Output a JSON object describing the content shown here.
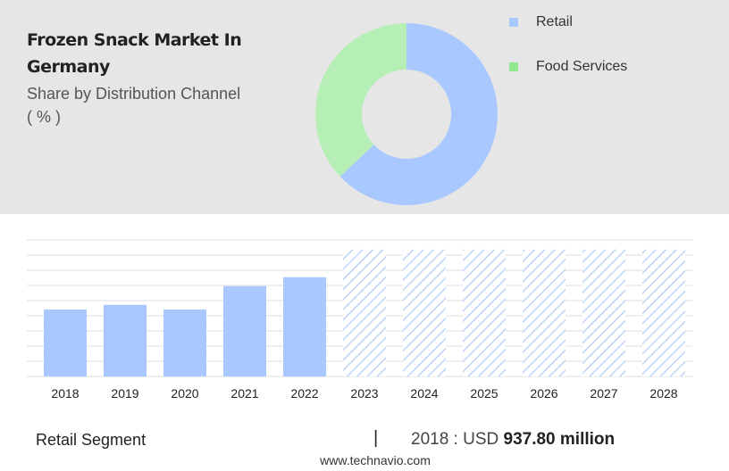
{
  "header": {
    "title": "Frozen Snack Market In Germany",
    "subtitle": "Share by Distribution Channel",
    "unit": "( % )"
  },
  "chart_data": [
    {
      "type": "pie",
      "variant": "donut",
      "labels": [
        "Retail",
        "Food Services"
      ],
      "values": [
        63,
        37
      ],
      "colors": [
        "#a8c8ff",
        "#b5efb5"
      ],
      "legend_colors": [
        "#a8c8ff",
        "#90e890"
      ],
      "legend": "right"
    },
    {
      "type": "bar",
      "categories": [
        "2018",
        "2019",
        "2020",
        "2021",
        "2022",
        "2023",
        "2024",
        "2025",
        "2026",
        "2027",
        "2028"
      ],
      "values": [
        937.8,
        1004,
        937.8,
        1265,
        1390,
        null,
        null,
        null,
        null,
        null,
        null
      ],
      "forecast_categories": [
        "2023",
        "2024",
        "2025",
        "2026",
        "2027",
        "2028"
      ],
      "ylim": [
        0,
        1900
      ],
      "grid": true,
      "colors": {
        "bar": "#a8c8ff",
        "forecast": "#bcd4f5"
      }
    }
  ],
  "footer": {
    "segment": "Retail Segment",
    "divider": "|",
    "year_label": "2018 : USD",
    "value": "937.80 million",
    "source": "www.technavio.com"
  }
}
